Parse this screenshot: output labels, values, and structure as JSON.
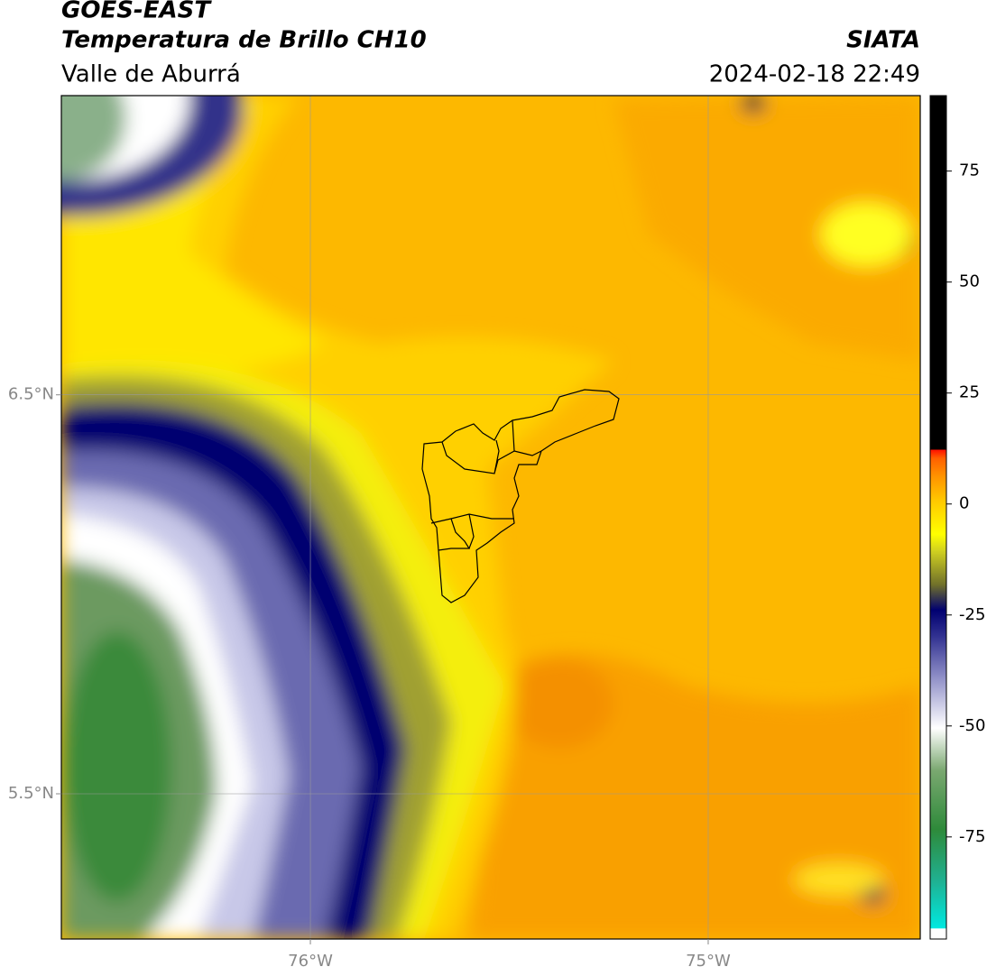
{
  "header": {
    "source": "GOES-EAST",
    "product": "Temperatura de Brillo CH10",
    "region": "Valle de Aburrá",
    "agency": "SIATA",
    "datetime": "2024-02-18 22:49"
  },
  "map": {
    "xlim": [
      -76.626,
      -74.467
    ],
    "ylim": [
      5.136,
      7.25
    ],
    "xticks": [
      {
        "value": -76,
        "label": "76°W"
      },
      {
        "value": -75,
        "label": "75°W"
      }
    ],
    "yticks": [
      {
        "value": 6.5,
        "label": "6.5°N"
      },
      {
        "value": 5.5,
        "label": "5.5°N"
      }
    ]
  },
  "colorbar": {
    "lim": [
      -98,
      92
    ],
    "ticks": [
      75,
      50,
      25,
      0,
      -25,
      -50,
      -75
    ]
  }
}
